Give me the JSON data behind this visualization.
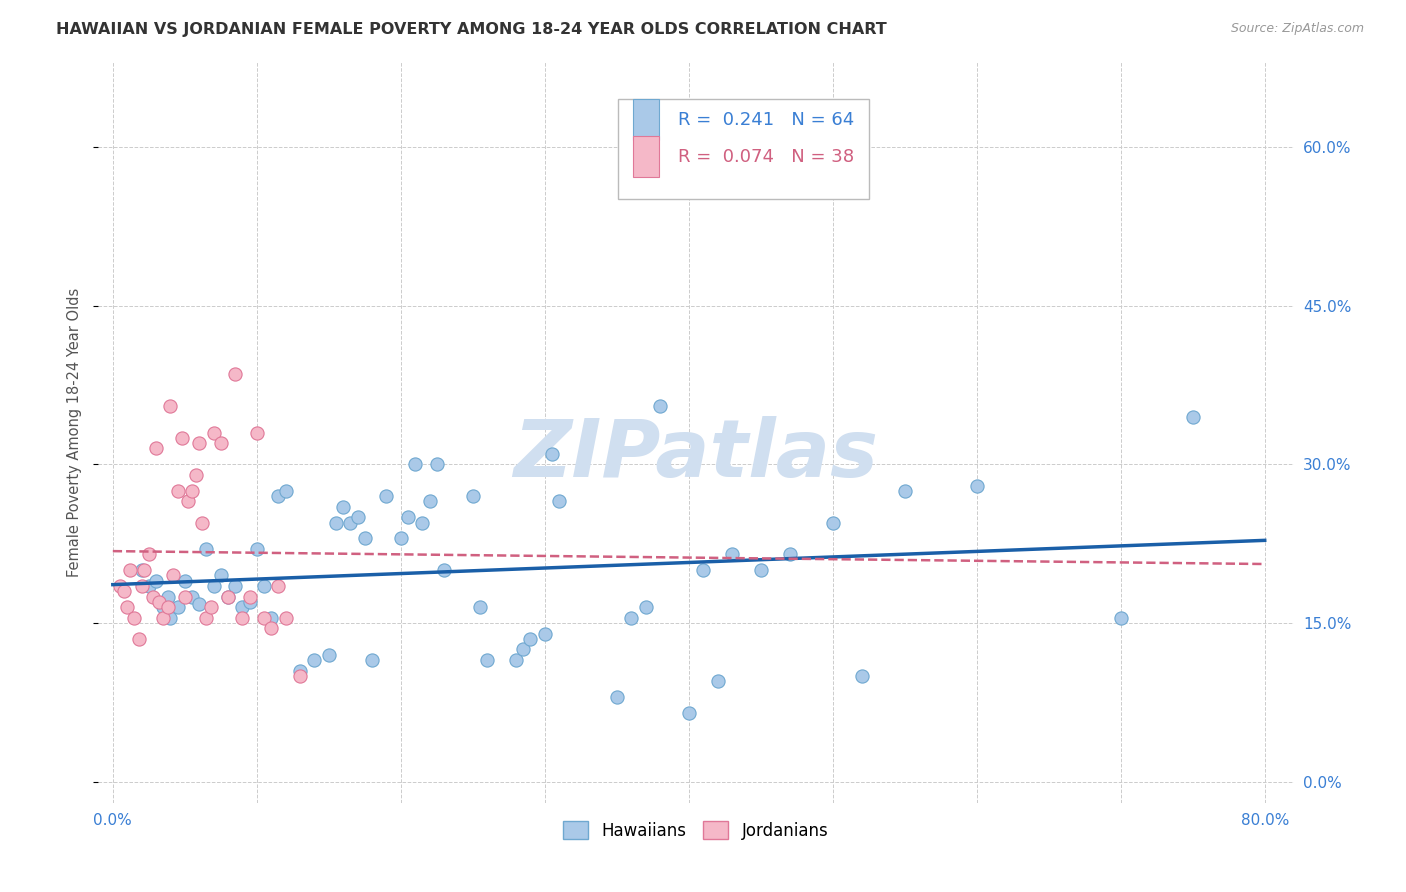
{
  "title": "HAWAIIAN VS JORDANIAN FEMALE POVERTY AMONG 18-24 YEAR OLDS CORRELATION CHART",
  "source": "Source: ZipAtlas.com",
  "ylabel": "Female Poverty Among 18-24 Year Olds",
  "xlim": [
    -0.01,
    0.82
  ],
  "ylim": [
    -0.02,
    0.68
  ],
  "yticks": [
    0.0,
    0.15,
    0.3,
    0.45,
    0.6
  ],
  "ytick_labels": [
    "0.0%",
    "15.0%",
    "30.0%",
    "45.0%",
    "60.0%"
  ],
  "xticks": [
    0.0,
    0.1,
    0.2,
    0.3,
    0.4,
    0.5,
    0.6,
    0.7,
    0.8
  ],
  "xtick_labels": [
    "0.0%",
    "",
    "",
    "",
    "",
    "",
    "",
    "",
    "80.0%"
  ],
  "hawaiians_R": 0.241,
  "hawaiians_N": 64,
  "jordanians_R": 0.074,
  "jordanians_N": 38,
  "hawaiian_color": "#aac9e8",
  "hawaiian_edge": "#6fa8d0",
  "jordanian_color": "#f5b8c8",
  "jordanian_edge": "#e07898",
  "trendline_hawaiian_color": "#1a5fa8",
  "trendline_jordanian_color": "#d06080",
  "watermark_color": "#d0dff0",
  "background_color": "#ffffff",
  "hawaiians_x": [
    0.02,
    0.025,
    0.03,
    0.035,
    0.038,
    0.04,
    0.045,
    0.05,
    0.055,
    0.06,
    0.065,
    0.07,
    0.075,
    0.08,
    0.085,
    0.09,
    0.095,
    0.1,
    0.105,
    0.11,
    0.115,
    0.12,
    0.13,
    0.14,
    0.15,
    0.155,
    0.16,
    0.165,
    0.17,
    0.175,
    0.18,
    0.19,
    0.2,
    0.205,
    0.21,
    0.215,
    0.22,
    0.225,
    0.23,
    0.25,
    0.255,
    0.26,
    0.28,
    0.285,
    0.29,
    0.3,
    0.305,
    0.31,
    0.35,
    0.36,
    0.37,
    0.38,
    0.4,
    0.41,
    0.42,
    0.43,
    0.45,
    0.47,
    0.5,
    0.52,
    0.55,
    0.6,
    0.7,
    0.75
  ],
  "hawaiians_y": [
    0.2,
    0.185,
    0.19,
    0.165,
    0.175,
    0.155,
    0.165,
    0.19,
    0.175,
    0.168,
    0.22,
    0.185,
    0.195,
    0.175,
    0.185,
    0.165,
    0.17,
    0.22,
    0.185,
    0.155,
    0.27,
    0.275,
    0.105,
    0.115,
    0.12,
    0.245,
    0.26,
    0.245,
    0.25,
    0.23,
    0.115,
    0.27,
    0.23,
    0.25,
    0.3,
    0.245,
    0.265,
    0.3,
    0.2,
    0.27,
    0.165,
    0.115,
    0.115,
    0.125,
    0.135,
    0.14,
    0.31,
    0.265,
    0.08,
    0.155,
    0.165,
    0.355,
    0.065,
    0.2,
    0.095,
    0.215,
    0.2,
    0.215,
    0.245,
    0.1,
    0.275,
    0.28,
    0.155,
    0.345
  ],
  "jordanians_x": [
    0.005,
    0.008,
    0.01,
    0.012,
    0.015,
    0.018,
    0.02,
    0.022,
    0.025,
    0.028,
    0.03,
    0.032,
    0.035,
    0.038,
    0.04,
    0.042,
    0.045,
    0.048,
    0.05,
    0.052,
    0.055,
    0.058,
    0.06,
    0.062,
    0.065,
    0.068,
    0.07,
    0.075,
    0.08,
    0.085,
    0.09,
    0.095,
    0.1,
    0.105,
    0.11,
    0.115,
    0.12,
    0.13
  ],
  "jordanians_y": [
    0.185,
    0.18,
    0.165,
    0.2,
    0.155,
    0.135,
    0.185,
    0.2,
    0.215,
    0.175,
    0.315,
    0.17,
    0.155,
    0.165,
    0.355,
    0.195,
    0.275,
    0.325,
    0.175,
    0.265,
    0.275,
    0.29,
    0.32,
    0.245,
    0.155,
    0.165,
    0.33,
    0.32,
    0.175,
    0.385,
    0.155,
    0.175,
    0.33,
    0.155,
    0.145,
    0.185,
    0.155,
    0.1
  ]
}
